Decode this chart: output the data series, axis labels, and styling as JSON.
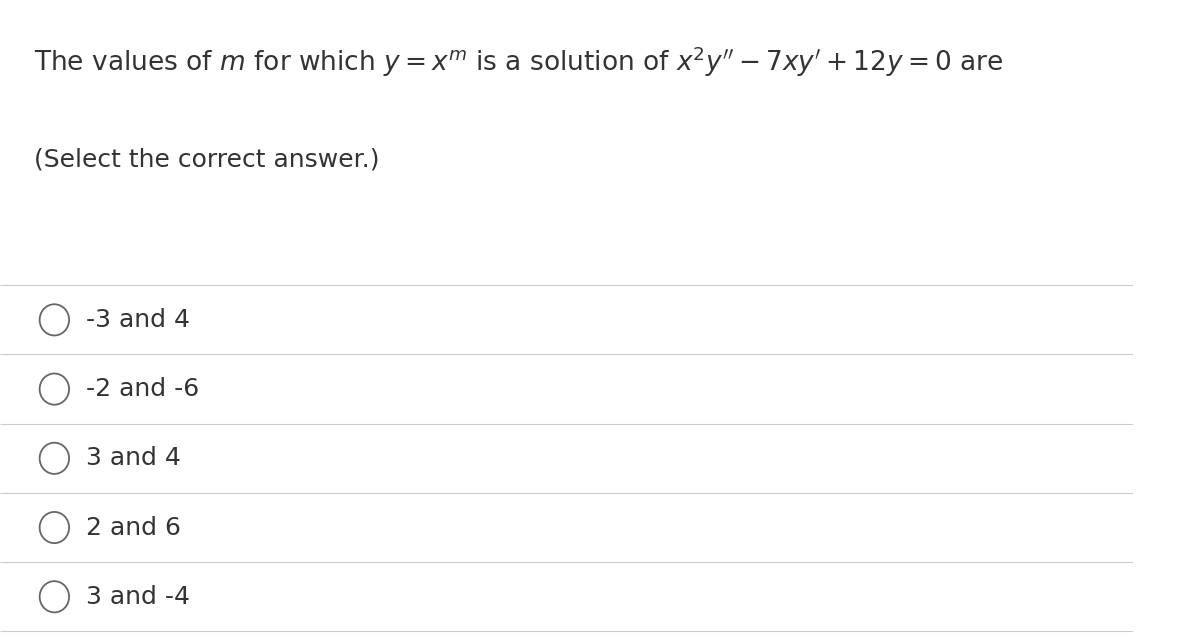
{
  "background_color": "#ffffff",
  "title_line1": "The values of $m$ for which $y = x^{m}$ is a solution of $x^2y'' - 7xy' + 12y = 0$ are",
  "subtitle": "(Select the correct answer.)",
  "options": [
    "-3 and 4",
    "-2 and -6",
    "3 and 4",
    "2 and 6",
    "3 and -4"
  ],
  "text_color": "#333333",
  "line_color": "#cccccc",
  "circle_color": "#666666",
  "title_fontsize": 19,
  "subtitle_fontsize": 18,
  "option_fontsize": 18,
  "fig_width": 12.0,
  "fig_height": 6.41
}
